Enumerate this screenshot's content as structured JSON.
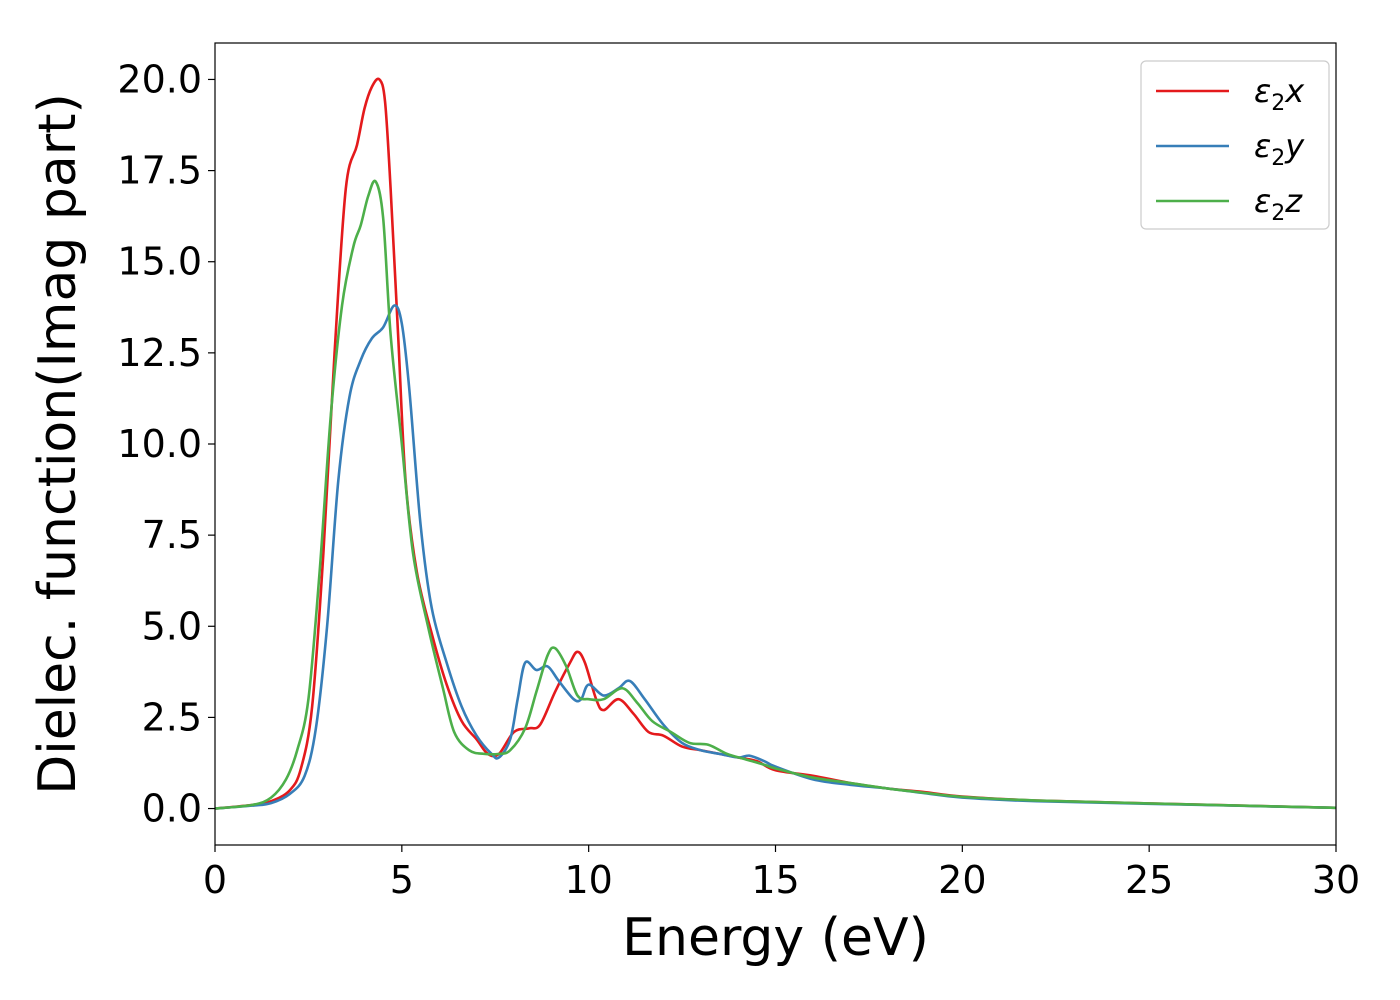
{
  "chart_data": {
    "type": "line",
    "title": "",
    "xlabel": "Energy (eV)",
    "ylabel": "Dielec. function(Imag part)",
    "xlim": [
      0,
      30
    ],
    "ylim": [
      -1.0,
      21.0
    ],
    "xticks": [
      0,
      5,
      10,
      15,
      20,
      25,
      30
    ],
    "xtick_labels": [
      "0",
      "5",
      "10",
      "15",
      "20",
      "25",
      "30"
    ],
    "yticks": [
      0,
      2.5,
      5,
      7.5,
      10,
      12.5,
      15,
      17.5,
      20
    ],
    "ytick_labels": [
      "0.0",
      "2.5",
      "5.0",
      "7.5",
      "10.0",
      "12.5",
      "15.0",
      "17.5",
      "20.0"
    ],
    "grid": false,
    "legend_position": "top-right",
    "series": [
      {
        "name": "ε₂x",
        "legend_base": "ε",
        "legend_sub": "2",
        "legend_suffix": "x",
        "color": "#e41a1c",
        "points": [
          [
            0,
            0
          ],
          [
            1,
            0.1
          ],
          [
            1.5,
            0.2
          ],
          [
            2,
            0.5
          ],
          [
            2.3,
            1.1
          ],
          [
            2.6,
            2.8
          ],
          [
            2.9,
            7.0
          ],
          [
            3.2,
            12.5
          ],
          [
            3.5,
            17.0
          ],
          [
            3.8,
            18.2
          ],
          [
            4.0,
            19.2
          ],
          [
            4.2,
            19.8
          ],
          [
            4.4,
            20.0
          ],
          [
            4.55,
            19.4
          ],
          [
            4.7,
            17.0
          ],
          [
            4.9,
            13.0
          ],
          [
            5.1,
            9.0
          ],
          [
            5.4,
            6.5
          ],
          [
            5.8,
            4.8
          ],
          [
            6.2,
            3.4
          ],
          [
            6.6,
            2.4
          ],
          [
            7.0,
            1.9
          ],
          [
            7.3,
            1.5
          ],
          [
            7.6,
            1.5
          ],
          [
            8.0,
            2.1
          ],
          [
            8.4,
            2.2
          ],
          [
            8.7,
            2.3
          ],
          [
            9.1,
            3.2
          ],
          [
            9.5,
            4.0
          ],
          [
            9.7,
            4.3
          ],
          [
            9.9,
            4.0
          ],
          [
            10.2,
            3.0
          ],
          [
            10.4,
            2.7
          ],
          [
            10.8,
            3.0
          ],
          [
            11.2,
            2.6
          ],
          [
            11.6,
            2.1
          ],
          [
            12.0,
            2.0
          ],
          [
            12.5,
            1.7
          ],
          [
            13.0,
            1.6
          ],
          [
            13.5,
            1.5
          ],
          [
            14.0,
            1.4
          ],
          [
            14.5,
            1.3
          ],
          [
            15.0,
            1.05
          ],
          [
            16.0,
            0.9
          ],
          [
            17.0,
            0.7
          ],
          [
            18.0,
            0.55
          ],
          [
            19.0,
            0.45
          ],
          [
            20.0,
            0.33
          ],
          [
            22.0,
            0.22
          ],
          [
            25.0,
            0.14
          ],
          [
            30.0,
            0.02
          ]
        ]
      },
      {
        "name": "ε₂y",
        "legend_base": "ε",
        "legend_sub": "2",
        "legend_suffix": "y",
        "color": "#377eb8",
        "points": [
          [
            0,
            0
          ],
          [
            1,
            0.08
          ],
          [
            1.5,
            0.15
          ],
          [
            2,
            0.4
          ],
          [
            2.4,
            0.9
          ],
          [
            2.7,
            2.2
          ],
          [
            3.0,
            5.0
          ],
          [
            3.3,
            9.0
          ],
          [
            3.6,
            11.3
          ],
          [
            3.9,
            12.3
          ],
          [
            4.2,
            12.9
          ],
          [
            4.5,
            13.2
          ],
          [
            4.8,
            13.8
          ],
          [
            5.0,
            13.3
          ],
          [
            5.2,
            11.5
          ],
          [
            5.5,
            7.8
          ],
          [
            5.8,
            5.5
          ],
          [
            6.2,
            4.0
          ],
          [
            6.6,
            2.8
          ],
          [
            7.0,
            2.0
          ],
          [
            7.4,
            1.5
          ],
          [
            7.6,
            1.4
          ],
          [
            7.9,
            1.9
          ],
          [
            8.1,
            3.0
          ],
          [
            8.3,
            4.0
          ],
          [
            8.6,
            3.8
          ],
          [
            8.9,
            3.9
          ],
          [
            9.2,
            3.5
          ],
          [
            9.6,
            3.0
          ],
          [
            9.8,
            3.0
          ],
          [
            10.0,
            3.4
          ],
          [
            10.4,
            3.1
          ],
          [
            10.8,
            3.3
          ],
          [
            11.1,
            3.5
          ],
          [
            11.5,
            3.0
          ],
          [
            12.0,
            2.3
          ],
          [
            12.5,
            1.8
          ],
          [
            13.0,
            1.6
          ],
          [
            13.5,
            1.5
          ],
          [
            14.0,
            1.4
          ],
          [
            14.3,
            1.45
          ],
          [
            14.7,
            1.3
          ],
          [
            15.0,
            1.15
          ],
          [
            16.0,
            0.8
          ],
          [
            17.0,
            0.65
          ],
          [
            18.0,
            0.55
          ],
          [
            19.0,
            0.42
          ],
          [
            20.0,
            0.3
          ],
          [
            22.0,
            0.2
          ],
          [
            25.0,
            0.13
          ],
          [
            30.0,
            0.02
          ]
        ]
      },
      {
        "name": "ε₂z",
        "legend_base": "ε",
        "legend_sub": "2",
        "legend_suffix": "z",
        "color": "#4daf4a",
        "points": [
          [
            0,
            0
          ],
          [
            1,
            0.1
          ],
          [
            1.5,
            0.3
          ],
          [
            1.9,
            0.8
          ],
          [
            2.2,
            1.6
          ],
          [
            2.5,
            3.0
          ],
          [
            2.8,
            6.5
          ],
          [
            3.1,
            10.8
          ],
          [
            3.4,
            13.8
          ],
          [
            3.7,
            15.4
          ],
          [
            3.9,
            16.0
          ],
          [
            4.1,
            16.8
          ],
          [
            4.3,
            17.2
          ],
          [
            4.5,
            16.2
          ],
          [
            4.7,
            13.0
          ],
          [
            5.0,
            10.0
          ],
          [
            5.3,
            7.0
          ],
          [
            5.7,
            5.0
          ],
          [
            6.1,
            3.3
          ],
          [
            6.4,
            2.1
          ],
          [
            6.8,
            1.6
          ],
          [
            7.2,
            1.5
          ],
          [
            7.6,
            1.5
          ],
          [
            7.9,
            1.6
          ],
          [
            8.3,
            2.2
          ],
          [
            8.6,
            3.2
          ],
          [
            8.9,
            4.2
          ],
          [
            9.1,
            4.4
          ],
          [
            9.4,
            3.9
          ],
          [
            9.7,
            3.1
          ],
          [
            10.0,
            3.0
          ],
          [
            10.4,
            3.0
          ],
          [
            10.9,
            3.3
          ],
          [
            11.3,
            2.9
          ],
          [
            11.7,
            2.4
          ],
          [
            12.2,
            2.1
          ],
          [
            12.7,
            1.8
          ],
          [
            13.2,
            1.75
          ],
          [
            13.7,
            1.5
          ],
          [
            14.2,
            1.35
          ],
          [
            14.7,
            1.2
          ],
          [
            15.0,
            1.1
          ],
          [
            16.0,
            0.85
          ],
          [
            17.0,
            0.7
          ],
          [
            18.0,
            0.55
          ],
          [
            19.0,
            0.43
          ],
          [
            20.0,
            0.32
          ],
          [
            22.0,
            0.22
          ],
          [
            25.0,
            0.14
          ],
          [
            30.0,
            0.02
          ]
        ]
      }
    ]
  }
}
